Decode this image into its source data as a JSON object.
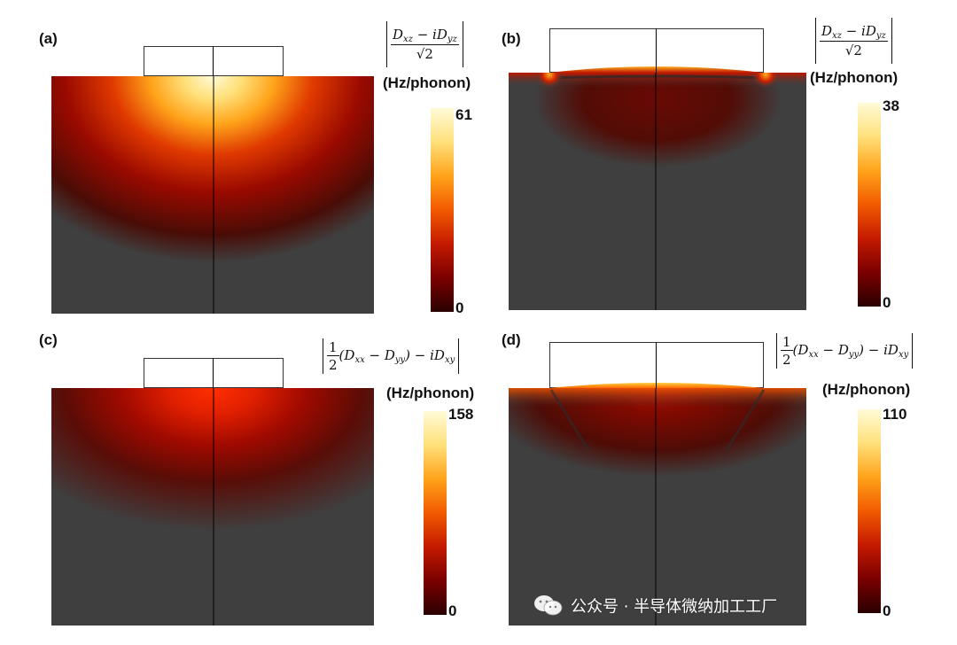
{
  "figure": {
    "panels": [
      {
        "id": "a",
        "label": "(a)",
        "unit_label": "(Hz/phonon)",
        "cbar_max": "61",
        "cbar_min": "0",
        "formula_type": "fraction",
        "formula_num": "D",
        "formula_num_sub1": "xz",
        "formula_num_mid": " − iD",
        "formula_num_sub2": "yz",
        "formula_den": "√2"
      },
      {
        "id": "b",
        "label": "(b)",
        "unit_label": "(Hz/phonon)",
        "cbar_max": "38",
        "cbar_min": "0",
        "formula_type": "fraction",
        "formula_num": "D",
        "formula_num_sub1": "xz",
        "formula_num_mid": " − iD",
        "formula_num_sub2": "yz",
        "formula_den": "√2"
      },
      {
        "id": "c",
        "label": "(c)",
        "unit_label": "(Hz/phonon)",
        "cbar_max": "158",
        "cbar_min": "0",
        "formula_type": "half",
        "formula_text": "(D",
        "formula_sub1": "xx",
        "formula_mid": " − D",
        "formula_sub2": "yy",
        "formula_tail": ") − iD",
        "formula_sub3": "xy"
      },
      {
        "id": "d",
        "label": "(d)",
        "unit_label": "(Hz/phonon)",
        "cbar_max": "110",
        "cbar_min": "0",
        "formula_type": "half",
        "formula_text": "(D",
        "formula_sub1": "xx",
        "formula_mid": " − D",
        "formula_sub2": "yy",
        "formula_tail": ") − iD",
        "formula_sub3": "xy"
      }
    ],
    "colormap": {
      "stops": [
        "#2a0000",
        "#7a0000",
        "#c41a00",
        "#f25a00",
        "#ffa31a",
        "#ffe07a",
        "#fffbd8"
      ],
      "background": "#3f3f3f"
    },
    "half_numerator": "1",
    "half_denominator": "2"
  },
  "watermark": {
    "text": "公众号 · 半导体微纳加工工厂",
    "icon": "wechat-icon"
  }
}
